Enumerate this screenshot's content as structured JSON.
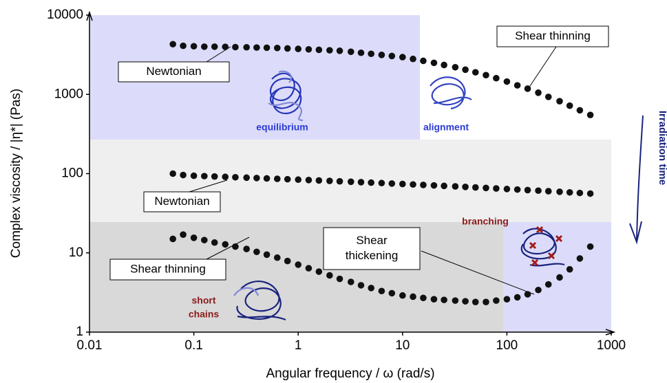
{
  "chart_data": {
    "type": "scatter",
    "xscale": "log",
    "yscale": "log",
    "x": [
      0.063,
      0.079,
      0.1,
      0.126,
      0.158,
      0.2,
      0.25,
      0.32,
      0.4,
      0.5,
      0.63,
      0.79,
      1,
      1.26,
      1.58,
      2,
      2.5,
      3.2,
      4,
      5,
      6.3,
      7.9,
      10,
      12.6,
      15.8,
      20,
      25,
      32,
      40,
      50,
      63,
      79,
      100,
      126,
      158,
      200,
      250,
      320,
      400,
      500,
      630
    ],
    "series": [
      {
        "color": "#111111",
        "values": [
          4300,
          4100,
          4050,
          4000,
          4000,
          3980,
          3950,
          3930,
          3900,
          3880,
          3850,
          3800,
          3750,
          3700,
          3650,
          3600,
          3550,
          3450,
          3350,
          3250,
          3150,
          3050,
          2950,
          2800,
          2650,
          2500,
          2350,
          2200,
          2050,
          1900,
          1750,
          1600,
          1450,
          1300,
          1180,
          1050,
          930,
          820,
          720,
          630,
          550
        ]
      },
      {
        "color": "#111111",
        "values": [
          100,
          96,
          94,
          93,
          92,
          91,
          90,
          89,
          88,
          87,
          86,
          85,
          84,
          83,
          82,
          81,
          80,
          79,
          78,
          77,
          76,
          75,
          74,
          73,
          72,
          71,
          70,
          69,
          68,
          67,
          66,
          65,
          64,
          63,
          62,
          61,
          60,
          59,
          58,
          57,
          56
        ]
      },
      {
        "color": "#111111",
        "values": [
          15,
          17,
          15.5,
          14.5,
          13.5,
          12.8,
          12,
          11.2,
          10.3,
          9.5,
          8.7,
          7.9,
          7.1,
          6.4,
          5.8,
          5.2,
          4.7,
          4.3,
          3.9,
          3.6,
          3.3,
          3.1,
          2.9,
          2.8,
          2.7,
          2.6,
          2.55,
          2.5,
          2.45,
          2.4,
          2.4,
          2.5,
          2.6,
          2.75,
          3.0,
          3.4,
          4.0,
          4.9,
          6.2,
          8.5,
          12
        ]
      }
    ],
    "xlabel": "Angular frequency / ω (rad/s)",
    "ylabel": "Complex viscosity / |η*| (Pas)",
    "xlim": [
      0.01,
      1000
    ],
    "ylim": [
      1,
      10000
    ],
    "xticks": [
      0.01,
      0.1,
      1,
      10,
      100,
      1000
    ],
    "yticks": [
      1,
      10,
      100,
      1000,
      10000
    ],
    "annotations": [
      {
        "lines": [
          "Newtonian"
        ]
      },
      {
        "lines": [
          "Shear thinning"
        ]
      },
      {
        "lines": [
          "Newtonian"
        ]
      },
      {
        "lines": [
          "Shear thinning"
        ]
      },
      {
        "lines": [
          "Shear",
          "thickening"
        ]
      }
    ],
    "region_labels": [
      {
        "lines": [
          "equilibrium"
        ],
        "color": "#2b3bd6"
      },
      {
        "lines": [
          "alignment"
        ],
        "color": "#2b3bd6"
      },
      {
        "lines": [
          "branching"
        ],
        "color": "#8b1a1a"
      },
      {
        "lines": [
          "short",
          "chains"
        ],
        "color": "#8b1a1a"
      }
    ],
    "side_label": "Irradiation time"
  }
}
